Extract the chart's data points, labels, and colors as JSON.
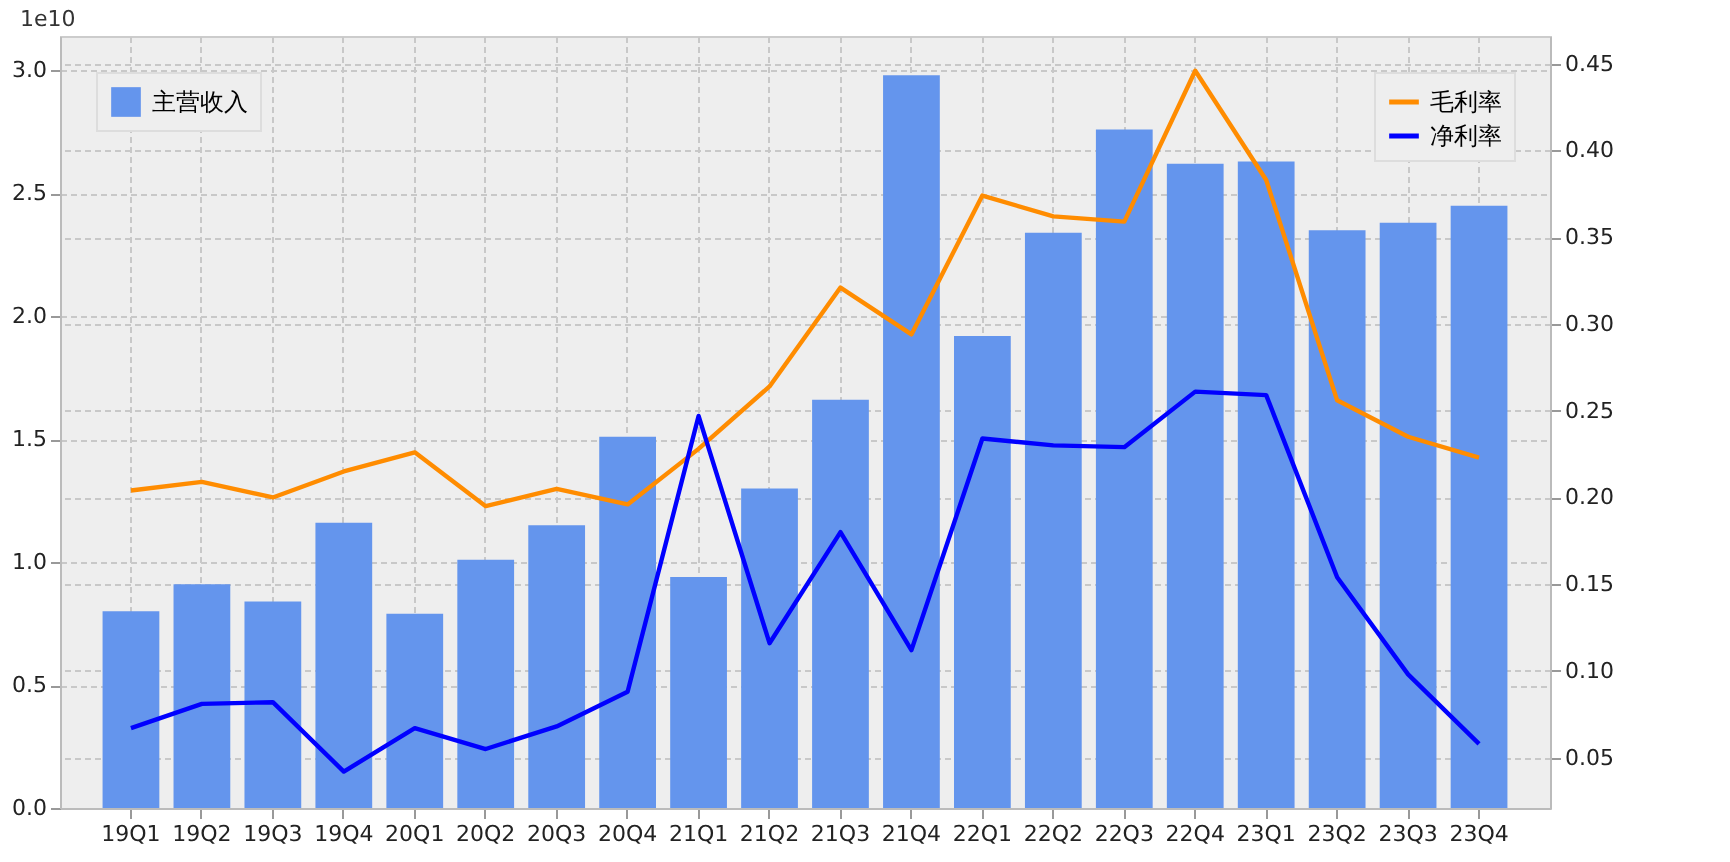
{
  "chart_data": {
    "type": "bar",
    "categories": [
      "19Q1",
      "19Q2",
      "19Q3",
      "19Q4",
      "20Q1",
      "20Q2",
      "20Q3",
      "20Q4",
      "21Q1",
      "21Q2",
      "21Q3",
      "21Q4",
      "22Q1",
      "22Q2",
      "22Q3",
      "22Q4",
      "23Q1",
      "23Q2",
      "23Q3",
      "23Q4"
    ],
    "series": [
      {
        "name": "主营收入",
        "color": "#6495ed",
        "values": [
          0.8,
          0.91,
          0.84,
          1.16,
          0.79,
          1.01,
          1.15,
          1.51,
          0.94,
          1.3,
          1.66,
          2.98,
          1.92,
          2.34,
          2.76,
          2.62,
          2.63,
          2.35,
          2.38,
          2.45
        ]
      },
      {
        "name": "毛利率",
        "type": "line",
        "axis": "y2",
        "color": "#ff8c00",
        "values": [
          0.204,
          0.209,
          0.2,
          0.215,
          0.226,
          0.195,
          0.205,
          0.196,
          0.228,
          0.264,
          0.321,
          0.294,
          0.374,
          0.362,
          0.359,
          0.446,
          0.383,
          0.256,
          0.235,
          0.223
        ]
      },
      {
        "name": "净利率",
        "type": "line",
        "axis": "y2",
        "color": "#0000ff",
        "values": [
          0.067,
          0.081,
          0.082,
          0.042,
          0.067,
          0.055,
          0.068,
          0.088,
          0.247,
          0.116,
          0.18,
          0.112,
          0.234,
          0.23,
          0.229,
          0.261,
          0.259,
          0.154,
          0.098,
          0.058
        ]
      }
    ],
    "ylim": [
      0,
      3.14
    ],
    "yticks": [
      {
        "value": 0,
        "label": "0.0"
      },
      {
        "value": 0.5,
        "label": "0.5"
      },
      {
        "value": 1,
        "label": "1.0"
      },
      {
        "value": 1.5,
        "label": "1.5"
      },
      {
        "value": 2,
        "label": "2.0"
      },
      {
        "value": 2.5,
        "label": "2.5"
      },
      {
        "value": 3,
        "label": "3.0"
      }
    ],
    "y2lim": [
      0.021,
      0.466
    ],
    "y2ticks": [
      0.05,
      {
        "value": 0.1,
        "label": "0.10"
      },
      0.15,
      {
        "value": 0.2,
        "label": "0.20"
      },
      0.25,
      {
        "value": 0.3,
        "label": "0.30"
      },
      0.35,
      {
        "value": 0.4,
        "label": "0.40"
      },
      0.45
    ],
    "annotations": [
      "1e10"
    ],
    "grid": true,
    "legend": "top"
  }
}
